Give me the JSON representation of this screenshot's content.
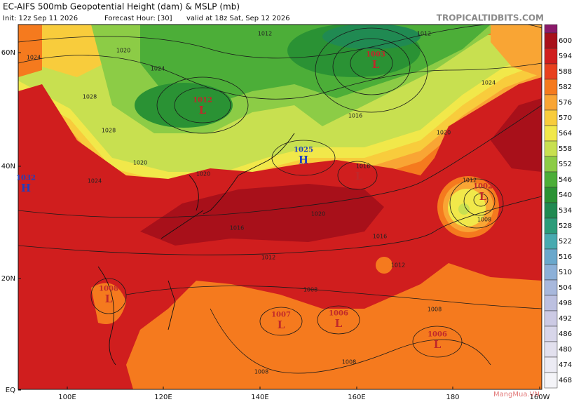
{
  "header": {
    "title": "EC-AIFS 500mb Geopotential Height (dam) & MSLP (mb)",
    "init": "Init: 12z Sep 11 2026",
    "forecast_hour": "Forecast Hour: [30]",
    "valid": "valid at 18z Sat, Sep 12 2026",
    "site": "TROPICALTIDBITS.COM"
  },
  "map": {
    "lat_labels": [
      "60N",
      "40N",
      "20N",
      "EQ"
    ],
    "lon_labels": [
      "100E",
      "120E",
      "140E",
      "160E",
      "180",
      "160W"
    ],
    "pressure_centers": [
      {
        "letter": "L",
        "value": "1012",
        "color": "#c0282a"
      },
      {
        "letter": "L",
        "value": "1003",
        "color": "#c0282a"
      },
      {
        "letter": "H",
        "value": "1025",
        "color": "#1f3fbf"
      },
      {
        "letter": "H",
        "value": "1032",
        "color": "#1f3fbf"
      },
      {
        "letter": "L",
        "color": "#c0282a"
      },
      {
        "letter": "L",
        "value": "1002",
        "color": "#c0282a"
      },
      {
        "letter": "L",
        "value": "1008",
        "color": "#c0282a"
      },
      {
        "letter": "L",
        "value": "1007",
        "color": "#c0282a"
      },
      {
        "letter": "L",
        "value": "1006",
        "color": "#c0282a"
      },
      {
        "letter": "L",
        "value": "1006",
        "color": "#c0282a"
      }
    ],
    "isobar_labels": [
      "1012",
      "1012",
      "1020",
      "1024",
      "1024",
      "1028",
      "1028",
      "1020",
      "1024",
      "1020",
      "1016",
      "1024",
      "1020",
      "1012",
      "1008",
      "1016",
      "1016",
      "1012",
      "1012",
      "1008",
      "1008",
      "1008",
      "1008",
      "1016",
      "1020"
    ],
    "watermark": "MangMua.VN"
  },
  "colorbar": {
    "levels": [
      600,
      594,
      588,
      582,
      576,
      570,
      564,
      558,
      552,
      546,
      540,
      534,
      528,
      522,
      516,
      510,
      504,
      498,
      492,
      486,
      480,
      474,
      468
    ],
    "top_color": "#8a1a6a",
    "colors": [
      "#a8101a",
      "#d01e1e",
      "#e8401e",
      "#f57a1e",
      "#f9a534",
      "#f8cc3c",
      "#f1e84a",
      "#c8e050",
      "#8ccc46",
      "#4cae38",
      "#2a9234",
      "#208a52",
      "#2c9c7a",
      "#48aab0",
      "#6aa8cc",
      "#8cb0d8",
      "#a8b8dc",
      "#bcc0e0",
      "#cccae4",
      "#d8d6ea",
      "#e2e0ee",
      "#ecebf4",
      "#f4f4f8"
    ]
  }
}
